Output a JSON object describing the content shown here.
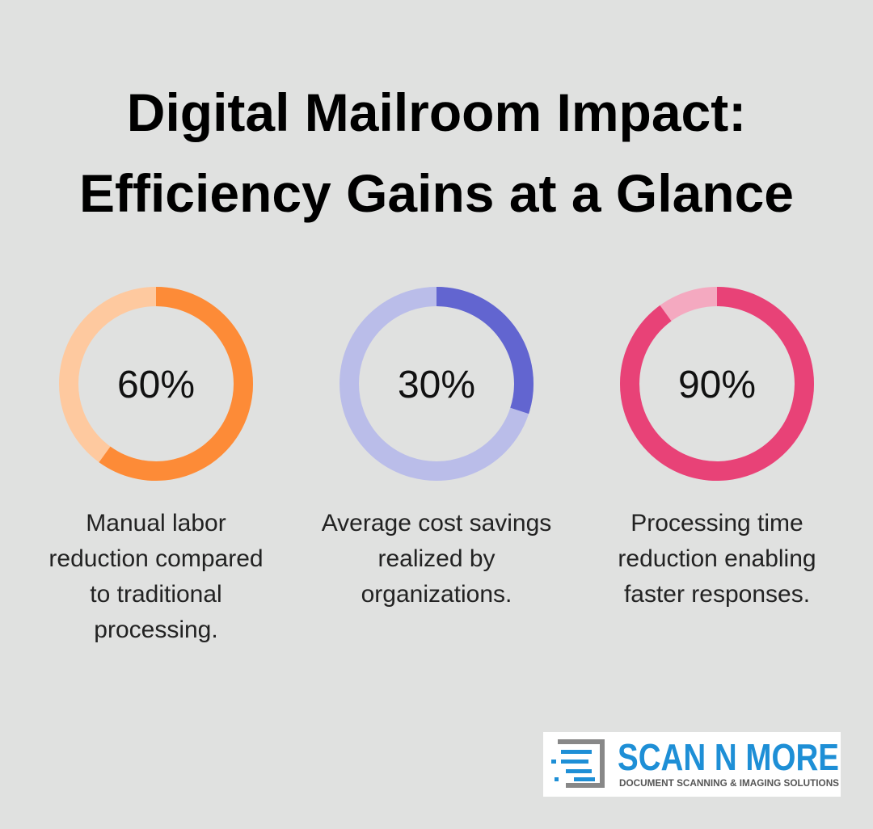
{
  "title_lines": [
    "Digital Mailroom Impact:",
    "Efficiency Gains at a Glance"
  ],
  "chart_data": [
    {
      "type": "donut",
      "values": [
        60
      ],
      "value_labels": [
        "60%"
      ],
      "color": "#fd8b37",
      "track_color": "#fec99f",
      "caption_lines": [
        "Manual labor",
        "reduction compared",
        "to traditional",
        "processing."
      ]
    },
    {
      "type": "donut",
      "values": [
        30
      ],
      "value_labels": [
        "30%"
      ],
      "color": "#6265d0",
      "track_color": "#babde9",
      "caption_lines": [
        "Average cost savings",
        "realized by",
        "organizations."
      ]
    },
    {
      "type": "donut",
      "values": [
        90
      ],
      "value_labels": [
        "90%"
      ],
      "color": "#e84277",
      "track_color": "#f4a9c0",
      "caption_lines": [
        "Processing time",
        "reduction enabling",
        "faster responses."
      ]
    }
  ],
  "logo": {
    "name": "SCAN N MORE",
    "tagline": "DOCUMENT SCANNING & IMAGING SOLUTIONS"
  }
}
